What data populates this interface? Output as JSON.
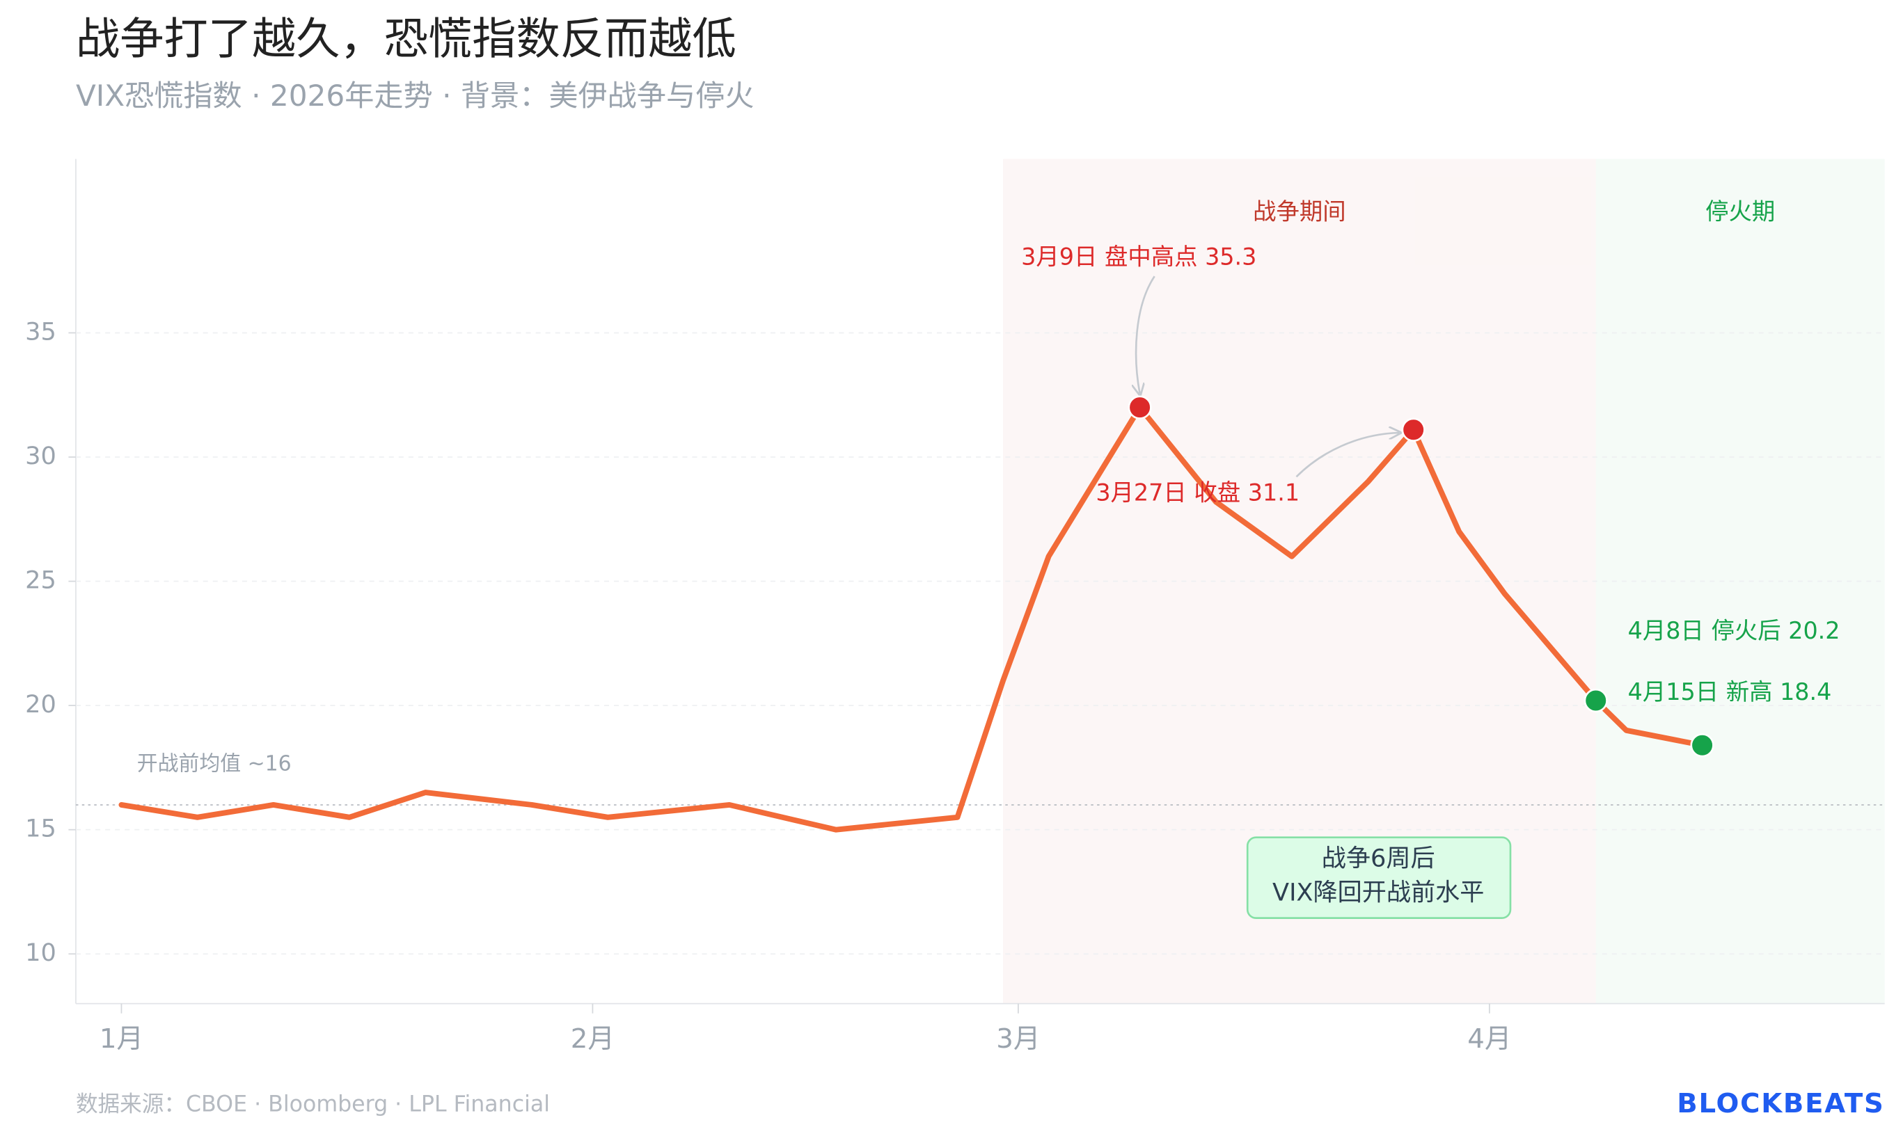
{
  "chart_data": {
    "type": "line",
    "title": "战争打了越久，恐慌指数反而越低",
    "subtitle": "VIX恐慌指数 · 2026年走势 · 背景：美伊战争与停火",
    "x": [
      1,
      6,
      11,
      16,
      21,
      28,
      33,
      41,
      48,
      56,
      59,
      62,
      68,
      73,
      78,
      83,
      86,
      89,
      92,
      98,
      100,
      105
    ],
    "values": [
      16,
      15.5,
      16,
      15.5,
      16.5,
      16,
      15.5,
      16,
      15,
      15.5,
      21,
      26,
      32,
      28.2,
      26,
      29,
      31.1,
      27,
      24.5,
      20.2,
      19,
      18.4
    ],
    "color": "#f26b38",
    "xlim": [
      -2,
      117
    ],
    "xticks": [
      {
        "value": 1,
        "label": "1月"
      },
      {
        "value": 32,
        "label": "2月"
      },
      {
        "value": 60,
        "label": "3月"
      },
      {
        "value": 91,
        "label": "4月"
      }
    ],
    "ylim": [
      8,
      42
    ],
    "yticks": [
      10,
      15,
      20,
      25,
      30,
      35
    ],
    "grid": true,
    "regions": [
      {
        "label": "战争期间",
        "start": 59,
        "end": 98,
        "color": "#c0392b"
      },
      {
        "label": "停火期",
        "start": 98,
        "end": 117,
        "color": "#16a34a"
      }
    ],
    "reference_line": {
      "value": 16,
      "label": "开战前均值 ~16"
    },
    "annotations": [
      {
        "x": 68,
        "text": "3月9日 盘中高点 35.3",
        "color": "#dd2a2a"
      },
      {
        "x": 86,
        "text": "3月27日 收盘 31.1",
        "color": "#dd2a2a"
      },
      {
        "x": 98,
        "text": "4月8日 停火后 20.2",
        "color": "#16a34a"
      },
      {
        "x": 105,
        "text": "4月15日 新高 18.4",
        "color": "#16a34a"
      }
    ],
    "note": [
      "战争6周后",
      "VIX降回开战前水平"
    ],
    "source": "数据来源：CBOE · Bloomberg · LPL Financial",
    "brand": "BLOCKBEATS"
  }
}
